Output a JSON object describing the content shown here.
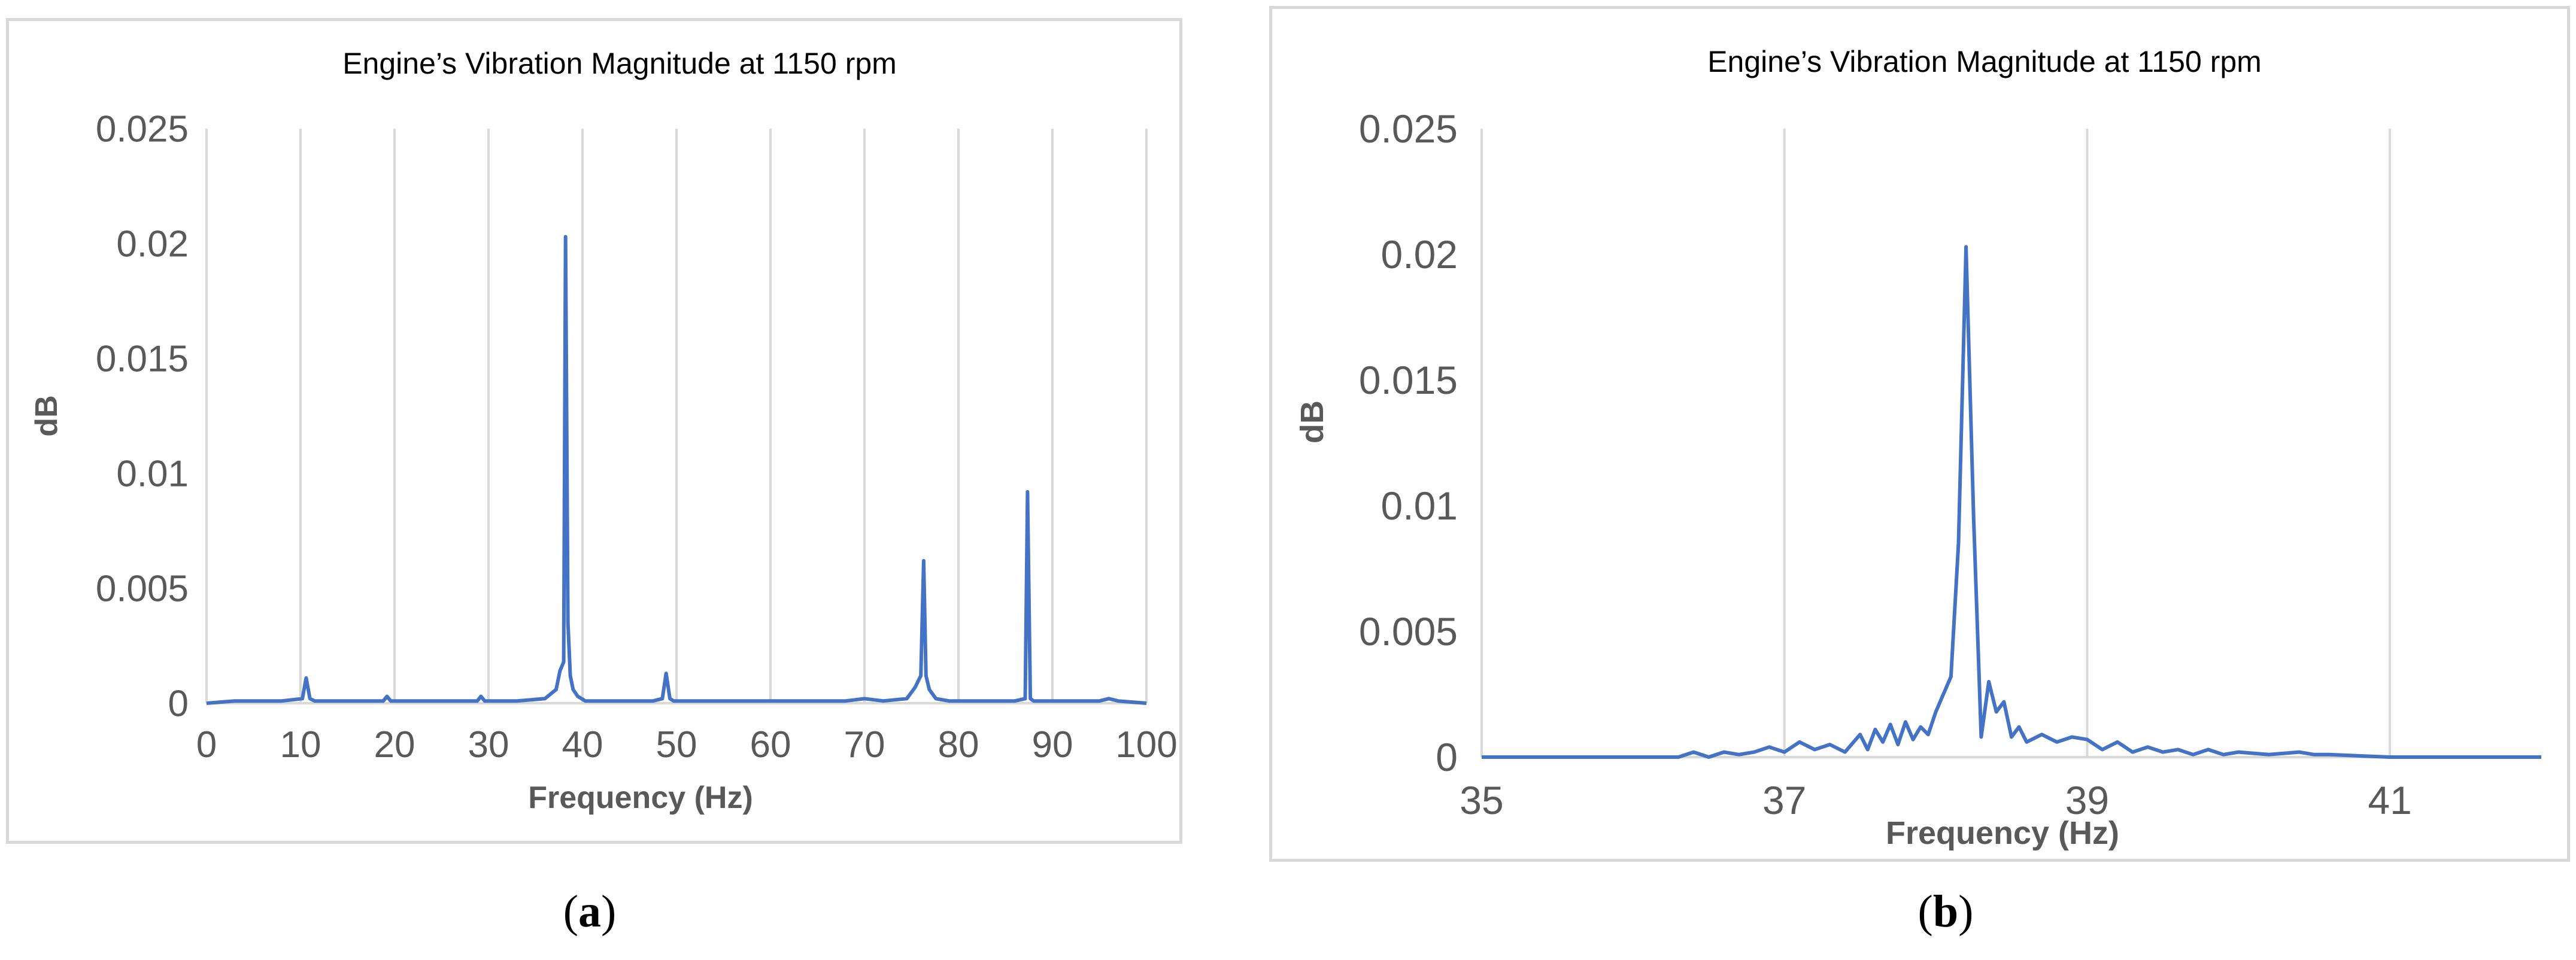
{
  "panels": [
    {
      "caption_open": "(",
      "caption_letter": "a",
      "caption_close": ")"
    },
    {
      "caption_open": "(",
      "caption_letter": "b",
      "caption_close": ")"
    }
  ],
  "chart_data": [
    {
      "type": "line",
      "title": "Engine’s Vibration Magnitude at 1150 rpm",
      "xlabel": "Frequency (Hz)",
      "ylabel": "dB",
      "xlim": [
        0,
        100
      ],
      "ylim": [
        0,
        0.025
      ],
      "x_ticks": [
        0,
        10,
        20,
        30,
        40,
        50,
        60,
        70,
        80,
        90,
        100
      ],
      "y_ticks": [
        0,
        0.005,
        0.01,
        0.015,
        0.02,
        0.025
      ],
      "x_tick_labels": [
        "0",
        "10",
        "20",
        "30",
        "40",
        "50",
        "60",
        "70",
        "80",
        "90",
        "100"
      ],
      "y_tick_labels": [
        "0",
        "0.005",
        "0.01",
        "0.015",
        "0.02",
        "0.025"
      ],
      "grid": "vertical",
      "legend": "none",
      "line_color": "#4472c4",
      "series": [
        {
          "x": [
            0,
            3,
            5,
            8,
            10.2,
            10.6,
            11,
            11.5,
            13,
            16,
            18.8,
            19.2,
            19.6,
            22,
            26,
            28.8,
            29.2,
            29.6,
            33,
            36,
            37.2,
            37.6,
            38,
            38.2,
            38.45,
            38.7,
            39,
            39.5,
            40.3,
            42,
            45,
            47.5,
            48.5,
            48.9,
            49.3,
            49.7,
            51,
            55,
            60,
            65,
            68,
            70,
            72,
            74.5,
            75.4,
            76,
            76.3,
            76.55,
            76.9,
            77.6,
            79,
            82,
            86,
            87.1,
            87.35,
            87.65,
            88,
            90,
            95,
            96,
            97,
            100
          ],
          "y": [
            0,
            0.0001,
            0.0001,
            0.0001,
            0.0002,
            0.0011,
            0.0002,
            0.0001,
            0.0001,
            0.0001,
            0.0001,
            0.0003,
            0.0001,
            0.0001,
            0.0001,
            0.0001,
            0.0003,
            0.0001,
            0.0001,
            0.0002,
            0.0006,
            0.0014,
            0.0018,
            0.0203,
            0.0035,
            0.0012,
            0.0006,
            0.0003,
            0.0001,
            0.0001,
            0.0001,
            0.0001,
            0.0002,
            0.0013,
            0.0002,
            0.0001,
            0.0001,
            0.0001,
            0.0001,
            0.0001,
            0.0001,
            0.0002,
            0.0001,
            0.0002,
            0.0007,
            0.0012,
            0.0062,
            0.0012,
            0.0006,
            0.0002,
            0.0001,
            0.0001,
            0.0001,
            0.0002,
            0.0092,
            0.0002,
            0.0001,
            0.0001,
            0.0001,
            0.0002,
            0.0001,
            0
          ]
        }
      ]
    },
    {
      "type": "line",
      "title": "Engine’s Vibration Magnitude at 1150 rpm",
      "xlabel": "Frequency (Hz)",
      "ylabel": "dB",
      "xlim": [
        35,
        42
      ],
      "ylim": [
        0,
        0.025
      ],
      "x_ticks": [
        35,
        37,
        39,
        41
      ],
      "y_ticks": [
        0,
        0.005,
        0.01,
        0.015,
        0.02,
        0.025
      ],
      "x_tick_labels": [
        "35",
        "37",
        "39",
        "41"
      ],
      "y_tick_labels": [
        "0",
        "0.005",
        "0.01",
        "0.015",
        "0.02",
        "0.025"
      ],
      "grid": "vertical",
      "legend": "none",
      "line_color": "#4472c4",
      "series": [
        {
          "x": [
            35,
            35.5,
            36,
            36.3,
            36.4,
            36.5,
            36.6,
            36.7,
            36.8,
            36.9,
            37,
            37.1,
            37.2,
            37.3,
            37.4,
            37.5,
            37.55,
            37.6,
            37.65,
            37.7,
            37.75,
            37.8,
            37.85,
            37.9,
            37.95,
            38,
            38.05,
            38.1,
            38.15,
            38.2,
            38.25,
            38.3,
            38.35,
            38.4,
            38.45,
            38.5,
            38.55,
            38.6,
            38.7,
            38.8,
            38.9,
            39,
            39.1,
            39.2,
            39.3,
            39.4,
            39.5,
            39.6,
            39.7,
            39.8,
            39.9,
            40,
            40.2,
            40.4,
            40.5,
            40.6,
            41,
            41.5,
            42
          ],
          "y": [
            0,
            0,
            0,
            0,
            0.0002,
            0,
            0.0002,
            0.0001,
            0.0002,
            0.0004,
            0.0002,
            0.0006,
            0.0003,
            0.0005,
            0.0002,
            0.0009,
            0.0003,
            0.0011,
            0.0006,
            0.0013,
            0.0005,
            0.0014,
            0.0007,
            0.0012,
            0.0009,
            0.0018,
            0.0025,
            0.0032,
            0.0085,
            0.0203,
            0.0095,
            0.0008,
            0.003,
            0.0018,
            0.0022,
            0.0008,
            0.0012,
            0.0006,
            0.0009,
            0.0006,
            0.0008,
            0.0007,
            0.0003,
            0.0006,
            0.0002,
            0.0004,
            0.0002,
            0.0003,
            0.0001,
            0.0003,
            0.0001,
            0.0002,
            0.0001,
            0.0002,
            0.0001,
            0.0001,
            0,
            0,
            0
          ]
        }
      ]
    }
  ]
}
